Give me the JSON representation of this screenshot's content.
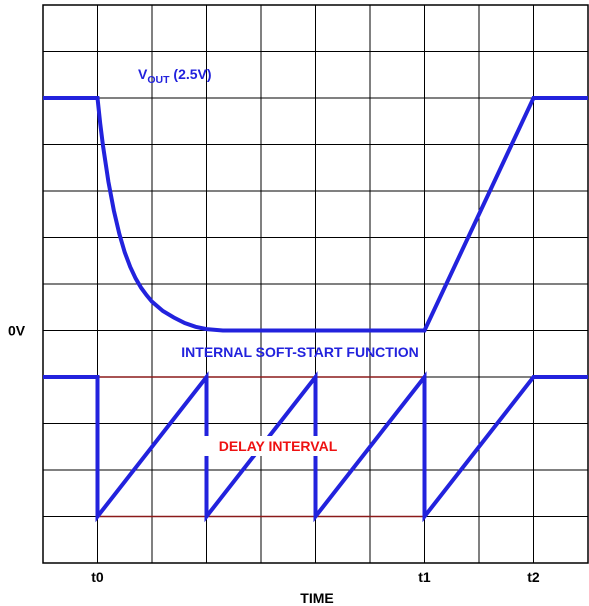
{
  "chart_data": {
    "type": "line",
    "xlabel": "TIME",
    "x_ticks": [
      {
        "label": "t0",
        "x": 1
      },
      {
        "label": "t1",
        "x": 7
      },
      {
        "label": "t2",
        "x": 9
      }
    ],
    "y_ticks": [
      {
        "label": "0V",
        "y": 5
      }
    ],
    "grid": true,
    "xlim": [
      0,
      10
    ],
    "ylim": [
      0,
      12
    ],
    "annotations": {
      "vout_main": "V",
      "vout_sub": "OUT",
      "vout_rest": " (2.5V)",
      "soft_start": "INTERNAL SOFT-START FUNCTION",
      "delay": "DELAY INTERVAL"
    },
    "colors": {
      "trace": "#2222dd",
      "delay_lines": "#8b1a1a",
      "delay_text": "#ee1111",
      "grid": "#000000"
    },
    "series": [
      {
        "name": "VOUT (2.5V)",
        "points": [
          [
            0,
            10
          ],
          [
            1,
            10
          ],
          [
            1.05,
            9.45
          ],
          [
            1.1,
            8.98
          ],
          [
            1.2,
            8.2
          ],
          [
            1.3,
            7.58
          ],
          [
            1.4,
            7.08
          ],
          [
            1.5,
            6.68
          ],
          [
            1.6,
            6.37
          ],
          [
            1.7,
            6.12
          ],
          [
            1.8,
            5.92
          ],
          [
            1.9,
            5.76
          ],
          [
            2.0,
            5.62
          ],
          [
            2.2,
            5.42
          ],
          [
            2.4,
            5.28
          ],
          [
            2.6,
            5.16
          ],
          [
            2.8,
            5.08
          ],
          [
            3.0,
            5.03
          ],
          [
            3.3,
            5.0
          ],
          [
            7,
            5
          ],
          [
            9,
            10
          ],
          [
            10,
            10
          ]
        ]
      },
      {
        "name": "INTERNAL SOFT-START FUNCTION",
        "points": [
          [
            0,
            4
          ],
          [
            1,
            4
          ],
          [
            1,
            1
          ],
          [
            3,
            4
          ],
          [
            3,
            1
          ],
          [
            5,
            4
          ],
          [
            5,
            1
          ],
          [
            7,
            4
          ],
          [
            7,
            1
          ],
          [
            9,
            4
          ],
          [
            10,
            4
          ]
        ]
      }
    ],
    "delay_interval": {
      "x_start": 1,
      "x_end": 7,
      "y_top": 4,
      "y_bottom": 1
    }
  }
}
